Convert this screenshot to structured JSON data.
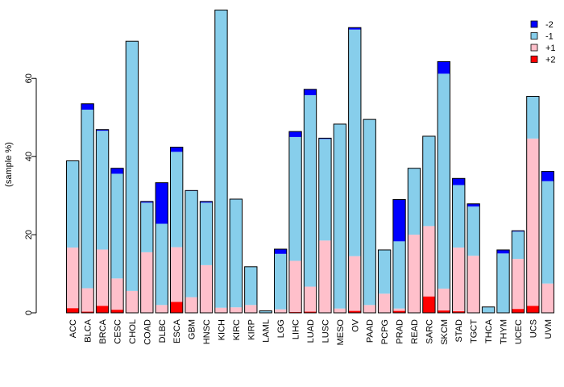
{
  "chart_data": {
    "type": "bar",
    "stacked": true,
    "title": "",
    "xlabel": "",
    "ylabel": "(sample %)",
    "ylim": [
      0,
      78
    ],
    "yticks": [
      0,
      20,
      40,
      60
    ],
    "categories": [
      "ACC",
      "BLCA",
      "BRCA",
      "CESC",
      "CHOL",
      "COAD",
      "DLBC",
      "ESCA",
      "GBM",
      "HNSC",
      "KICH",
      "KIRC",
      "KIRP",
      "LAML",
      "LGG",
      "LIHC",
      "LUAD",
      "LUSC",
      "MESO",
      "OV",
      "PAAD",
      "PCPG",
      "PRAD",
      "READ",
      "SARC",
      "SKCM",
      "STAD",
      "TGCT",
      "THCA",
      "THYM",
      "UCEC",
      "UCS",
      "UVM"
    ],
    "series": [
      {
        "name": "+2",
        "color": "#ff0000",
        "values": [
          1.2,
          0.3,
          1.8,
          0.8,
          0,
          0,
          0,
          2.8,
          0,
          0,
          0,
          0,
          0,
          0,
          0,
          0.2,
          0.3,
          0,
          0,
          0.5,
          0,
          0,
          0.5,
          0,
          4.2,
          0.6,
          0.4,
          0,
          0,
          0,
          1.0,
          1.8,
          0
        ]
      },
      {
        "name": "+1",
        "color": "#ffc0cb",
        "values": [
          15.5,
          6.0,
          14.4,
          8.0,
          5.6,
          15.5,
          2.0,
          14.0,
          4.0,
          12.2,
          1.3,
          1.4,
          2.0,
          0,
          0.9,
          13.1,
          6.4,
          18.5,
          1.1,
          14.0,
          2.0,
          4.9,
          0.6,
          20.0,
          18.0,
          5.6,
          16.3,
          14.6,
          0,
          0,
          12.8,
          42.8,
          7.5
        ]
      },
      {
        "name": "-1",
        "color": "#87ceeb",
        "values": [
          22.2,
          45.7,
          30.4,
          26.8,
          63.9,
          12.7,
          20.8,
          24.4,
          27.2,
          16.0,
          76.2,
          27.6,
          9.8,
          0.5,
          14.2,
          31.7,
          49.0,
          26.0,
          47.2,
          58.0,
          47.5,
          11.2,
          17.2,
          17.0,
          23.0,
          55.0,
          16.0,
          12.6,
          1.5,
          15.2,
          7.0,
          10.8,
          26.2
        ]
      },
      {
        "name": "-2",
        "color": "#0000ff",
        "values": [
          0,
          1.5,
          0.3,
          1.4,
          0,
          0.3,
          10.5,
          1.2,
          0.1,
          0.3,
          0,
          0.1,
          0,
          0,
          1.2,
          1.4,
          1.5,
          0.2,
          0,
          0.5,
          0,
          0,
          10.7,
          0,
          0,
          3.1,
          1.7,
          0.7,
          0,
          0.9,
          0.2,
          0,
          2.5
        ]
      }
    ],
    "legend_order": [
      "-2",
      "-1",
      "+1",
      "+2"
    ],
    "legend_position": "top-right",
    "grid": false
  }
}
